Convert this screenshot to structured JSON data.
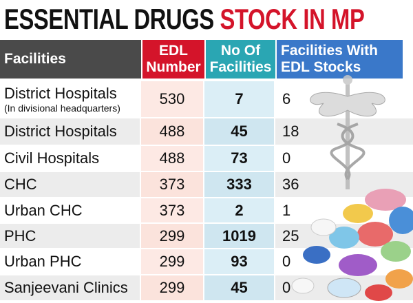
{
  "header": {
    "title_part1": "ESSENTIAL DRUGS",
    "title_part2": "STOCK IN MP"
  },
  "table": {
    "columns": [
      "Facilities",
      "EDL Number",
      "No Of Facilities",
      "Facilities With EDL Stocks"
    ],
    "rows": [
      {
        "facility": "District Hospitals",
        "note": "(In divisional headquarters)",
        "edl": 530,
        "facilities": 7,
        "with_stock": 6
      },
      {
        "facility": "District Hospitals",
        "edl": 488,
        "facilities": 45,
        "with_stock": 18
      },
      {
        "facility": "Civil Hospitals",
        "edl": 488,
        "facilities": 73,
        "with_stock": 0
      },
      {
        "facility": "CHC",
        "edl": 373,
        "facilities": 333,
        "with_stock": 36
      },
      {
        "facility": "Urban CHC",
        "edl": 373,
        "facilities": 2,
        "with_stock": 1
      },
      {
        "facility": "PHC",
        "edl": 299,
        "facilities": 1019,
        "with_stock": 25
      },
      {
        "facility": "Urban PHC",
        "edl": 299,
        "facilities": 93,
        "with_stock": 0
      },
      {
        "facility": "Sanjeevani Clinics",
        "edl": 299,
        "facilities": 45,
        "with_stock": 0
      }
    ]
  }
}
